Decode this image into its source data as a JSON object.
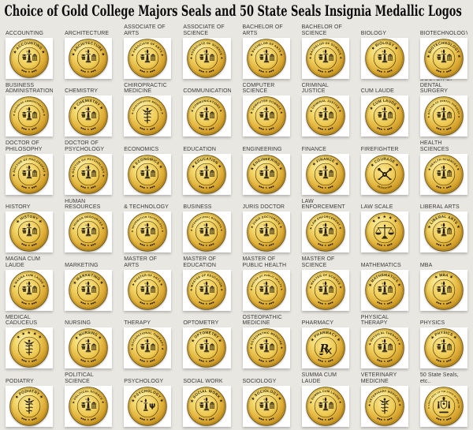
{
  "page": {
    "title": "Choice of Gold College Majors Seals and 50 State Seals Insignia Medallic Logos",
    "background_color": "#e9e7e1",
    "tile_color": "#ffffff"
  },
  "palette": {
    "gold_highlight": "#fff7c0",
    "gold_mid": "#f3d76a",
    "gold_deep": "#c3901f",
    "gold_edge": "#8f6a10",
    "engraving": "#241c06",
    "label_text": "#3b3b3b",
    "title_text": "#0c0c0c"
  },
  "grid": {
    "columns": 8,
    "rows": 7,
    "cells": [
      {
        "label": "ACCOUNTING",
        "seal_text": "ACCOUNTING",
        "bottom_text": "",
        "icon": "torch-and-columns"
      },
      {
        "label": "ARCHITECTURE",
        "seal_text": "ARCHITECTURE",
        "bottom_text": "",
        "icon": "torch-and-columns"
      },
      {
        "label": "ASSOCIATE OF ARTS",
        "seal_text": "ASSOCIATE OF ARTS",
        "bottom_text": "",
        "icon": "torch-and-columns"
      },
      {
        "label": "ASSOCIATE OF SCIENCE",
        "seal_text": "ASSOCIATE OF SCIENCE",
        "bottom_text": "",
        "icon": "torch-and-columns"
      },
      {
        "label": "BACHELOR OF ARTS",
        "seal_text": "BACHELOR OF ARTS",
        "bottom_text": "",
        "icon": "torch-and-columns"
      },
      {
        "label": "BACHELOR OF SCIENCE",
        "seal_text": "BACHELOR OF SCIENCE",
        "bottom_text": "",
        "icon": "torch-and-columns"
      },
      {
        "label": "BIOLOGY",
        "seal_text": "BIOLOGY",
        "bottom_text": "",
        "icon": "torch-and-columns"
      },
      {
        "label": "BIOTECHNOLOGY",
        "seal_text": "BIOTECHNOLOGY",
        "bottom_text": "",
        "icon": "torch-and-columns"
      },
      {
        "label": "BUSINESS ADMINISTRATION",
        "seal_text": "BUSINESS ADMINISTRATION",
        "bottom_text": "",
        "icon": "torch-and-columns"
      },
      {
        "label": "CHEMISTRY",
        "seal_text": "CHEMISTRY",
        "bottom_text": "",
        "icon": "torch-and-columns"
      },
      {
        "label": "CHIROPRACTIC MEDICINE",
        "seal_text": "CHIROPRACTIC MEDICINE",
        "bottom_text": "",
        "icon": "caduceus"
      },
      {
        "label": "COMMUNICATIONS",
        "seal_text": "COMMUNICATIONS",
        "bottom_text": "",
        "icon": "torch-and-columns"
      },
      {
        "label": "COMPUTER SCIENCE",
        "seal_text": "COMPUTER SCIENCE",
        "bottom_text": "",
        "icon": "torch-and-columns"
      },
      {
        "label": "CRIMINAL JUSTICE",
        "seal_text": "CRIMINAL JUSTICE",
        "bottom_text": "",
        "icon": "torch-and-columns"
      },
      {
        "label": "CUM LAUDE",
        "seal_text": "CUM LAUDE",
        "bottom_text": "",
        "icon": "torch-and-columns"
      },
      {
        "label": "DOCTOR OF DENTAL SURGERY",
        "seal_text": "DOCTOR OF DENTAL SURGERY",
        "bottom_text": "",
        "icon": "torch-and-columns"
      },
      {
        "label": "DOCTOR OF PHILOSOPHY",
        "seal_text": "DOCTOR OF PHILOSOPHY",
        "bottom_text": "",
        "icon": "torch-and-columns"
      },
      {
        "label": "DOCTOR OF PSYCHOLOGY",
        "seal_text": "DOCTOR OF PSYCHOLOGY",
        "bottom_text": "",
        "icon": "torch-and-columns"
      },
      {
        "label": "ECONOMICS",
        "seal_text": "ECONOMICS",
        "bottom_text": "",
        "icon": "torch-and-columns"
      },
      {
        "label": "EDUCATION",
        "seal_text": "EDUCATION",
        "bottom_text": "",
        "icon": "torch-and-columns"
      },
      {
        "label": "ENGINEERING",
        "seal_text": "ENGINEERING",
        "bottom_text": "",
        "icon": "torch-and-columns"
      },
      {
        "label": "FINANCE",
        "seal_text": "FINANCE",
        "bottom_text": "",
        "icon": "torch-and-columns"
      },
      {
        "label": "FIREFIGHTER",
        "seal_text": "COURAGE",
        "bottom_text": "DEDICATION",
        "icon": "crossed-axes"
      },
      {
        "label": "HEALTH SCIENCES",
        "seal_text": "HEALTH SCIENCES",
        "bottom_text": "",
        "icon": "torch-and-columns"
      },
      {
        "label": "HISTORY",
        "seal_text": "HISTORY",
        "bottom_text": "",
        "icon": "torch-and-columns"
      },
      {
        "label": "HUMAN RESOURCES",
        "seal_text": "HUMAN RESOURCES",
        "bottom_text": "",
        "icon": "torch-and-columns"
      },
      {
        "label": "& TECHNOLOGY",
        "seal_text": "INFORMATION TECHNOLOGY",
        "bottom_text": "",
        "icon": "torch-and-columns"
      },
      {
        "label": "BUSINESS",
        "seal_text": "INTERNATIONAL BUSINESS",
        "bottom_text": "",
        "icon": "torch-and-columns"
      },
      {
        "label": "JURIS DOCTOR",
        "seal_text": "JURIS DOCTORATE",
        "bottom_text": "",
        "icon": "torch-and-columns"
      },
      {
        "label": "LAW ENFORCEMENT",
        "seal_text": "LAW ENFORCEMENT",
        "bottom_text": "",
        "icon": "torch-and-columns"
      },
      {
        "label": "LAW SCALE",
        "seal_text": "",
        "bottom_text": "",
        "icon": "scales"
      },
      {
        "label": "LIBERAL ARTS",
        "seal_text": "LIBERAL ARTS",
        "bottom_text": "",
        "icon": "torch-and-columns"
      },
      {
        "label": "MAGNA CUM LAUDE",
        "seal_text": "MAGNA CUM LAUDE",
        "bottom_text": "",
        "icon": "torch-and-columns"
      },
      {
        "label": "MARKETING",
        "seal_text": "MARKETING",
        "bottom_text": "",
        "icon": "torch-and-columns"
      },
      {
        "label": "MASTER OF ARTS",
        "seal_text": "MASTER OF ARTS",
        "bottom_text": "",
        "icon": "torch-and-columns"
      },
      {
        "label": "MASTER OF EDUCATION",
        "seal_text": "MASTER OF EDUCATION",
        "bottom_text": "",
        "icon": "torch-and-columns"
      },
      {
        "label": "MASTER OF PUBLIC HEALTH",
        "seal_text": "MASTER OF PUBLIC HEALTH",
        "bottom_text": "",
        "icon": "torch-and-columns"
      },
      {
        "label": "MASTER OF SCIENCE",
        "seal_text": "MASTER OF SCIENCE",
        "bottom_text": "",
        "icon": "torch-and-columns"
      },
      {
        "label": "MATHEMATICS",
        "seal_text": "MATHEMATICS",
        "bottom_text": "",
        "icon": "torch-and-columns"
      },
      {
        "label": "MBA",
        "seal_text": "MBA",
        "bottom_text": "",
        "icon": "torch-and-columns"
      },
      {
        "label": "MEDICAL CADUCEUS",
        "seal_text": "",
        "bottom_text": "",
        "icon": "caduceus"
      },
      {
        "label": "NURSING",
        "seal_text": "NURSING",
        "bottom_text": "",
        "icon": "torch-and-columns"
      },
      {
        "label": "THERAPY",
        "seal_text": "OCCUPATIONAL THERAPY",
        "bottom_text": "",
        "icon": "torch-and-columns"
      },
      {
        "label": "OPTOMETRY",
        "seal_text": "OPTOMETRY",
        "bottom_text": "",
        "icon": "torch-and-columns"
      },
      {
        "label": "OSTEOPATHIC MEDICINE",
        "seal_text": "OSTEOPATHIC MEDICINE",
        "bottom_text": "",
        "icon": "torch-and-columns"
      },
      {
        "label": "PHARMACY",
        "seal_text": "PHARMACY",
        "bottom_text": "",
        "icon": "rx-symbol"
      },
      {
        "label": "PHYSICAL THERAPY",
        "seal_text": "PHYSICAL THERAPY",
        "bottom_text": "",
        "icon": "torch-and-columns"
      },
      {
        "label": "PHYSICS",
        "seal_text": "PHYSICS",
        "bottom_text": "",
        "icon": "torch-and-columns"
      },
      {
        "label": "PODIATRY",
        "seal_text": "PODIATRY",
        "bottom_text": "",
        "icon": "caduceus"
      },
      {
        "label": "POLITICAL SCIENCE",
        "seal_text": "POLITICAL SCIENCE",
        "bottom_text": "",
        "icon": "torch-and-columns"
      },
      {
        "label": "PSYCHOLOGY",
        "seal_text": "PSYCHOLOGY",
        "bottom_text": "",
        "icon": "psi-torch"
      },
      {
        "label": "SOCIAL WORK",
        "seal_text": "SOCIAL WORK",
        "bottom_text": "",
        "icon": "torch-and-columns"
      },
      {
        "label": "SOCIOLOGY",
        "seal_text": "SOCIOLOGY",
        "bottom_text": "",
        "icon": "torch-and-columns"
      },
      {
        "label": "SUMMA CUM LAUDE",
        "seal_text": "SUMMA CUM LAUDE",
        "bottom_text": "",
        "icon": "torch-and-columns"
      },
      {
        "label": "VETERINARY MEDICINE",
        "seal_text": "VETERINARY MEDICINE",
        "bottom_text": "",
        "icon": "caduceus"
      },
      {
        "label": "50 State Seals, etc..",
        "seal_text": "THE GREAT SEAL OF THE STATE OF NEW YORK",
        "bottom_text": "",
        "icon": "state-crest"
      }
    ]
  }
}
